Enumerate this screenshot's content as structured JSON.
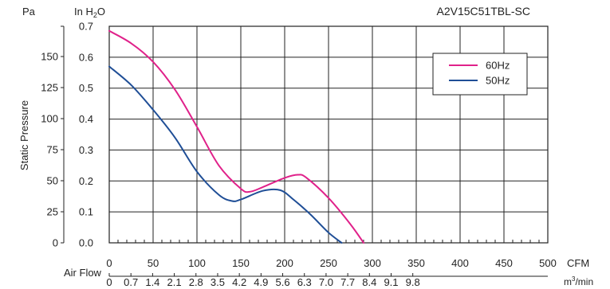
{
  "chart_data": {
    "type": "line",
    "title": "A2V15C51TBL-SC",
    "ylabel": "Static Pressure",
    "y_left_unit": "Pa",
    "y_right_unit_prefix": "In H",
    "y_right_unit_sub": "2",
    "y_right_unit_suffix": "O",
    "xlabel": "Air Flow",
    "x_unit_top": "CFM",
    "x_unit_bottom_prefix": "m",
    "x_unit_bottom_sup": "3",
    "x_unit_bottom_suffix": "/min",
    "xlim": [
      0,
      500
    ],
    "ylim_inh2o": [
      0,
      0.7
    ],
    "grid": true,
    "legend_position": "top-right",
    "cfm_ticks": [
      "0",
      "50",
      "100",
      "150",
      "200",
      "250",
      "300",
      "350",
      "400",
      "450",
      "500"
    ],
    "m3min_ticks": [
      "0",
      "0.7",
      "1.4",
      "2.1",
      "2.8",
      "3.5",
      "4.2",
      "4.9",
      "5.6",
      "6.3",
      "7.0",
      "7.7",
      "8.4",
      "9.1",
      "9.8"
    ],
    "inh2o_ticks": [
      "0.0",
      "0.1",
      "0.2",
      "0.3",
      "0.4",
      "0.5",
      "0.6",
      "0.7"
    ],
    "pa_ticks": [
      {
        "label": "0",
        "value": 0
      },
      {
        "label": "25",
        "value": 25
      },
      {
        "label": "50",
        "value": 50
      },
      {
        "label": "75",
        "value": 75
      },
      {
        "label": "100",
        "value": 100
      },
      {
        "label": "125",
        "value": 125
      },
      {
        "label": "150",
        "value": 150
      }
    ],
    "series": [
      {
        "name": "60Hz",
        "color": "#e0218a",
        "x": [
          0,
          25,
          50,
          75,
          100,
          125,
          150,
          160,
          175,
          200,
          215,
          225,
          250,
          275,
          290
        ],
        "y": [
          0.685,
          0.645,
          0.585,
          0.495,
          0.375,
          0.25,
          0.175,
          0.165,
          0.18,
          0.21,
          0.22,
          0.21,
          0.145,
          0.06,
          0.0
        ]
      },
      {
        "name": "50Hz",
        "color": "#1f4e96",
        "x": [
          0,
          25,
          50,
          75,
          100,
          125,
          140,
          150,
          175,
          195,
          210,
          230,
          250,
          265
        ],
        "y": [
          0.57,
          0.51,
          0.43,
          0.34,
          0.23,
          0.155,
          0.135,
          0.14,
          0.168,
          0.17,
          0.14,
          0.09,
          0.033,
          0.0
        ]
      }
    ]
  }
}
